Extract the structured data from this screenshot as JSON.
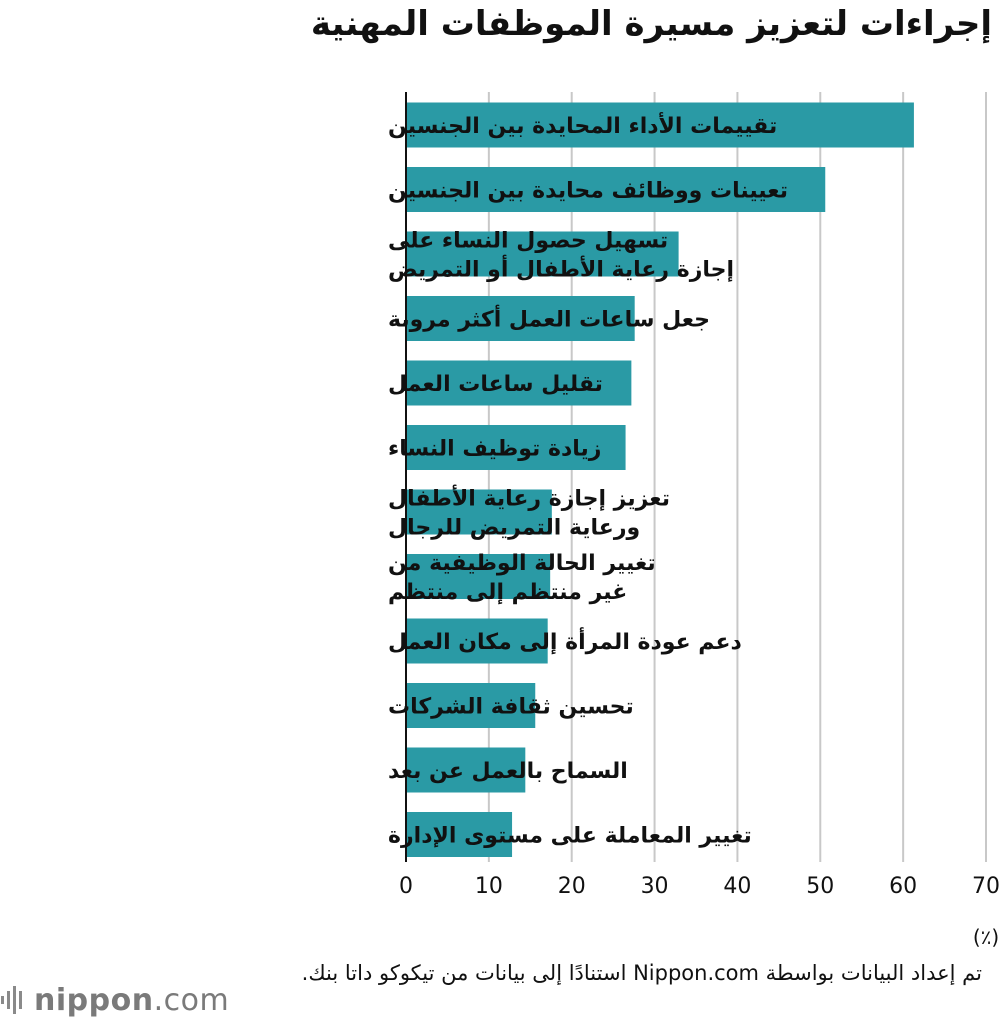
{
  "chart_data": {
    "type": "bar",
    "orientation": "horizontal",
    "title": "إجراءات لتعزيز مسيرة الموظفات المهنية",
    "unit_label": "(٪)",
    "categories": [
      "تقييمات الأداء المحايدة بين الجنسين",
      "تعيينات ووظائف محايدة بين الجنسين",
      "تسهيل حصول النساء على|إجازة رعاية الأطفال أو التمريض",
      "جعل ساعات العمل أكثر مرونة",
      "تقليل ساعات العمل",
      "زيادة توظيف النساء",
      "تعزيز إجازة رعاية الأطفال|ورعاية التمريض للرجال",
      "تغيير الحالة الوظيفية من|غير منتظم إلى منتظم",
      "دعم عودة المرأة إلى مكان العمل",
      "تحسين ثقافة الشركات",
      "السماح بالعمل عن بعد",
      "تغيير المعاملة على مستوى الإدارة"
    ],
    "values": [
      61.3,
      50.6,
      32.9,
      27.6,
      27.2,
      26.5,
      17.6,
      17.4,
      17.1,
      15.6,
      14.4,
      12.8
    ],
    "xlim": [
      0,
      70
    ],
    "ticks": [
      "0",
      "10",
      "20",
      "30",
      "40",
      "50",
      "60",
      "70"
    ],
    "grid": true,
    "bar_color": "#2a9aa5"
  },
  "source": "تم إعداد البيانات بواسطة Nippon.com استنادًا إلى بيانات من تيكوكو داتا بنك.",
  "logo": {
    "name": "nippon",
    "suffix": ".com",
    "icon": "sound-bars-icon"
  }
}
